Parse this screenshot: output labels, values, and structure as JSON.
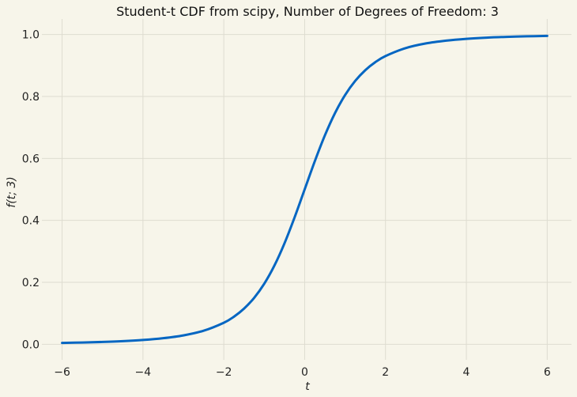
{
  "chart_data": {
    "type": "line",
    "title": "Student-t CDF from scipy, Number of Degrees of Freedom: 3",
    "xlabel": "t",
    "ylabel": "f(t; 3)",
    "xlim": [
      -6.5,
      6.6
    ],
    "ylim": [
      -0.05,
      1.05
    ],
    "x_ticks": [
      -6,
      -4,
      -2,
      0,
      2,
      4,
      6
    ],
    "x_tick_labels": [
      "−6",
      "−4",
      "−2",
      "0",
      "2",
      "4",
      "6"
    ],
    "y_ticks": [
      0.0,
      0.2,
      0.4,
      0.6,
      0.8,
      1.0
    ],
    "y_tick_labels": [
      "0.0",
      "0.2",
      "0.4",
      "0.6",
      "0.8",
      "1.0"
    ],
    "grid": true,
    "series": [
      {
        "color": "#0566c2",
        "x": [
          -6,
          -5.5,
          -5,
          -4.5,
          -4,
          -3.5,
          -3,
          -2.5,
          -2,
          -1.75,
          -1.5,
          -1.25,
          -1,
          -0.75,
          -0.5,
          -0.25,
          0,
          0.25,
          0.5,
          0.75,
          1,
          1.25,
          1.5,
          1.75,
          2,
          2.5,
          3,
          3.5,
          4,
          4.5,
          5,
          5.5,
          6
        ],
        "y": [
          0.0046,
          0.0059,
          0.0077,
          0.0102,
          0.014,
          0.0198,
          0.0288,
          0.0439,
          0.0697,
          0.0892,
          0.1153,
          0.15,
          0.1955,
          0.2538,
          0.3257,
          0.4094,
          0.5,
          0.5906,
          0.6743,
          0.7462,
          0.8045,
          0.85,
          0.8847,
          0.9108,
          0.9303,
          0.9561,
          0.9712,
          0.9802,
          0.986,
          0.9898,
          0.9923,
          0.9941,
          0.9954
        ]
      }
    ]
  }
}
